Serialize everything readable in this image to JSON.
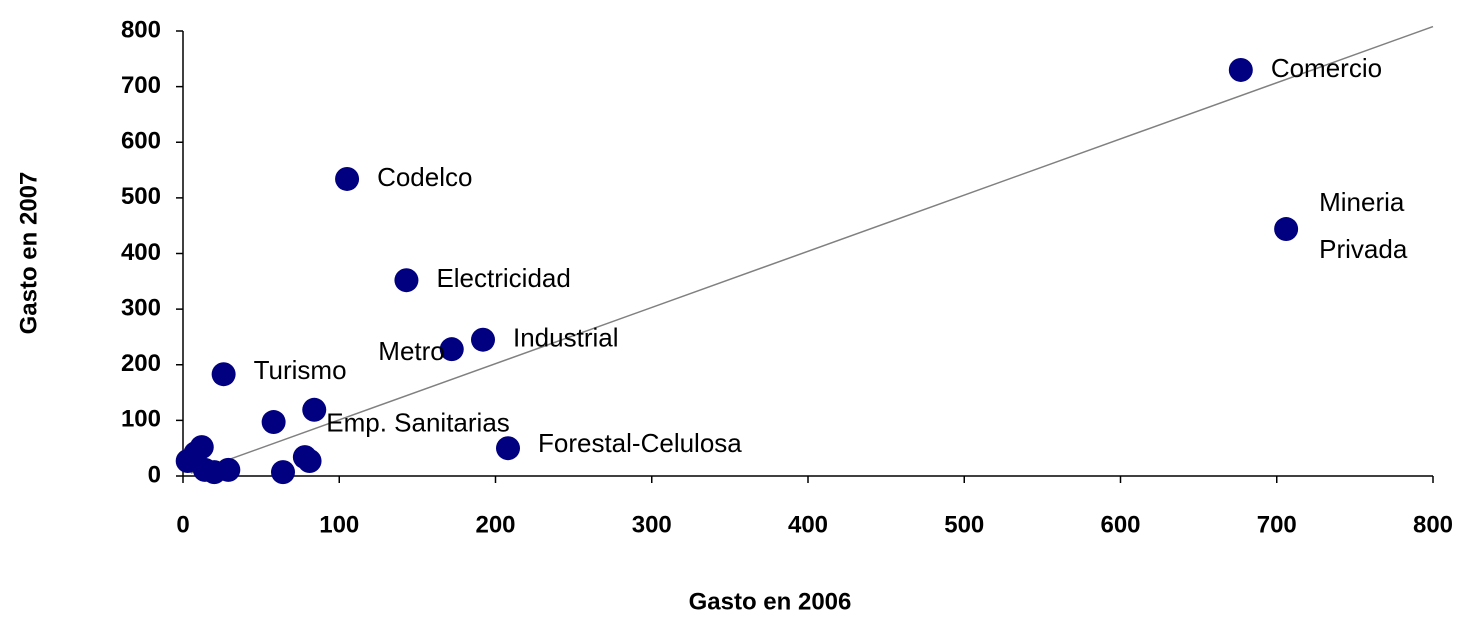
{
  "chart_data": {
    "type": "scatter",
    "x_label": "Gasto en 2006",
    "y_label": "Gasto en 2007",
    "xlim": [
      0,
      800
    ],
    "ylim": [
      0,
      800
    ],
    "xticks": [
      0,
      100,
      200,
      300,
      400,
      500,
      600,
      700,
      800
    ],
    "yticks": [
      0,
      100,
      200,
      300,
      400,
      500,
      600,
      700,
      800
    ],
    "color": "#000080",
    "x": [
      677,
      706,
      105,
      143,
      192,
      172,
      26,
      84,
      208,
      58,
      78,
      81,
      64,
      3,
      8,
      12,
      14,
      20,
      29
    ],
    "y": [
      730,
      444,
      534,
      352,
      245,
      228,
      183,
      119,
      50,
      97,
      34,
      27,
      7,
      27,
      41,
      52,
      11,
      7,
      11
    ],
    "labels": [
      "Comercio",
      "Mineria Privada",
      "Codelco",
      "Electricidad",
      "Industrial",
      "Metro",
      "Turismo",
      "Emp. Sanitarias",
      "Forestal-Celulosa",
      null,
      null,
      null,
      null,
      null,
      null,
      null,
      null,
      null,
      null
    ],
    "trendline": {
      "color": "#808080",
      "x": [
        5,
        800
      ],
      "y": [
        5,
        808
      ]
    }
  }
}
